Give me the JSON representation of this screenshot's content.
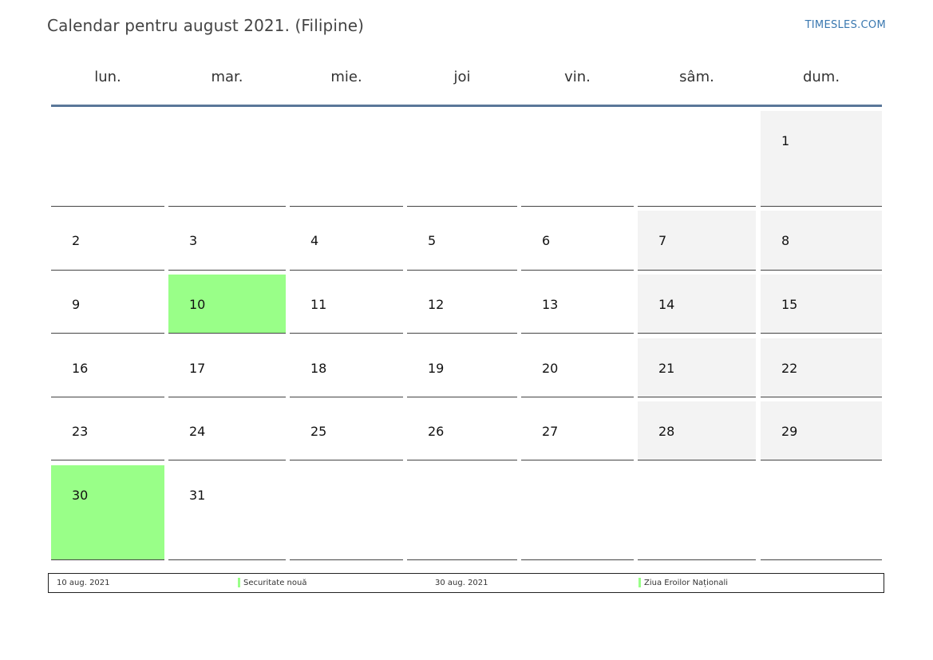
{
  "header": {
    "title": "Calendar pentru august 2021. (Filipine)",
    "site": "TIMESLES.COM"
  },
  "weekdays": [
    "lun.",
    "mar.",
    "mie.",
    "joi",
    "vin.",
    "sâm.",
    "dum."
  ],
  "weeks": [
    [
      "",
      "",
      "",
      "",
      "",
      "",
      "1"
    ],
    [
      "2",
      "3",
      "4",
      "5",
      "6",
      "7",
      "8"
    ],
    [
      "9",
      "10",
      "11",
      "12",
      "13",
      "14",
      "15"
    ],
    [
      "16",
      "17",
      "18",
      "19",
      "20",
      "21",
      "22"
    ],
    [
      "23",
      "24",
      "25",
      "26",
      "27",
      "28",
      "29"
    ],
    [
      "30",
      "31",
      "",
      "",
      "",
      "",
      ""
    ]
  ],
  "holidays": [
    "10",
    "30"
  ],
  "colors": {
    "holiday": "#99ff88",
    "weekend": "#f3f3f3",
    "header_line": "#5a7799",
    "site_link": "#3a78b0"
  },
  "legend": [
    {
      "date": "10 aug. 2021",
      "name": "Securitate nouă"
    },
    {
      "date": "30 aug. 2021",
      "name": "Ziua Eroilor Naționali"
    }
  ]
}
